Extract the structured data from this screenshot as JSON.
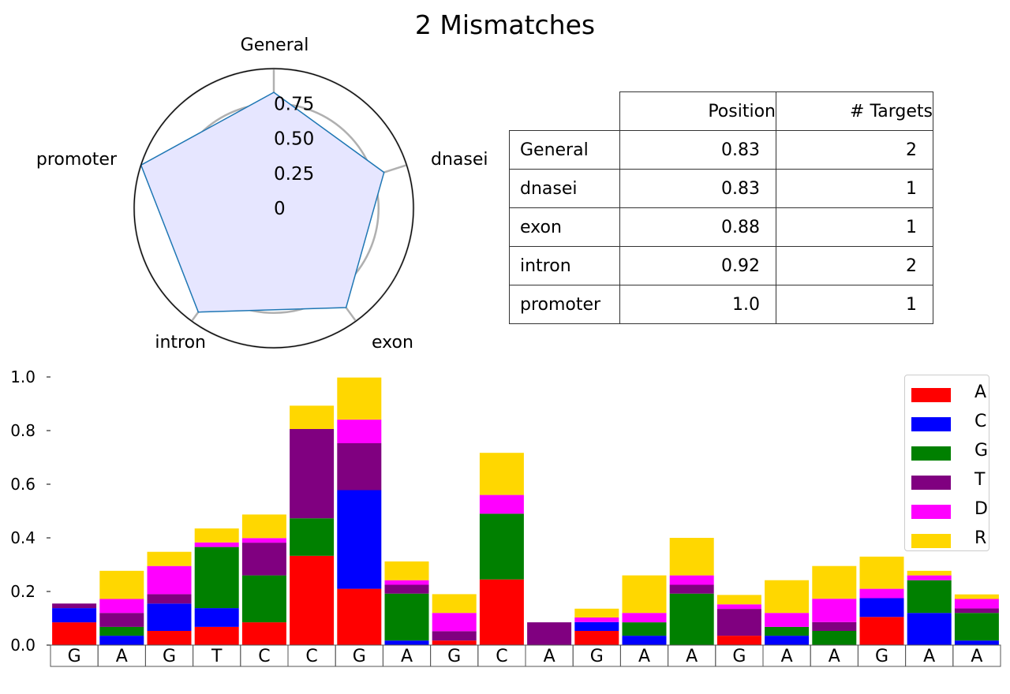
{
  "title": "2 Mismatches",
  "chart_data": [
    {
      "type": "radar",
      "categories": [
        "General",
        "dnasei",
        "exon",
        "intron",
        "promoter"
      ],
      "values": [
        0.83,
        0.83,
        0.88,
        0.92,
        1.0
      ],
      "tick_labels": [
        "0",
        "0.25",
        "0.50",
        "0.75"
      ],
      "rlim": [
        0,
        1.0
      ],
      "fill_color": "#e6e6ff",
      "line_color": "#1f77b4"
    },
    {
      "type": "table",
      "columns": [
        "",
        "Position",
        "# Targets"
      ],
      "rows": [
        [
          "General",
          "0.83",
          "2"
        ],
        [
          "dnasei",
          "0.83",
          "1"
        ],
        [
          "exon",
          "0.88",
          "1"
        ],
        [
          "intron",
          "0.92",
          "2"
        ],
        [
          "promoter",
          "1.0",
          "1"
        ]
      ]
    },
    {
      "type": "bar",
      "stacked": true,
      "categories": [
        "G",
        "A",
        "G",
        "T",
        "C",
        "C",
        "G",
        "A",
        "G",
        "C",
        "A",
        "G",
        "A",
        "A",
        "G",
        "A",
        "A",
        "G",
        "A",
        "A"
      ],
      "ylim": [
        0,
        1.0
      ],
      "yticks": [
        "0.0",
        "0.2",
        "0.4",
        "0.6",
        "0.8",
        "1.0"
      ],
      "legend_position": "top-right",
      "series": [
        {
          "name": "A",
          "color": "#ff0000",
          "values": [
            0.085,
            0,
            0.053,
            0.068,
            0.085,
            0.333,
            0.21,
            0,
            0.017,
            0.245,
            0,
            0.053,
            0,
            0,
            0.035,
            0,
            0,
            0.105,
            0,
            0
          ]
        },
        {
          "name": "C",
          "color": "#0000ff",
          "values": [
            0.053,
            0.035,
            0.102,
            0.07,
            0,
            0,
            0.368,
            0.017,
            0,
            0,
            0,
            0.033,
            0.035,
            0,
            0,
            0.035,
            0,
            0.07,
            0.12,
            0.017
          ]
        },
        {
          "name": "G",
          "color": "#008000",
          "values": [
            0,
            0.033,
            0,
            0.228,
            0.175,
            0.14,
            0,
            0.175,
            0,
            0.245,
            0,
            0,
            0.05,
            0.192,
            0,
            0.033,
            0.053,
            0,
            0.122,
            0.103
          ]
        },
        {
          "name": "T",
          "color": "#800080",
          "values": [
            0.017,
            0.052,
            0.035,
            0,
            0.122,
            0.333,
            0.175,
            0.033,
            0.035,
            0,
            0.085,
            0,
            0,
            0.033,
            0.1,
            0,
            0.033,
            0,
            0,
            0.017
          ]
        },
        {
          "name": "D",
          "color": "#ff00ff",
          "values": [
            0,
            0.052,
            0.105,
            0.017,
            0.017,
            0,
            0.088,
            0.017,
            0.068,
            0.07,
            0,
            0.017,
            0.035,
            0.035,
            0.017,
            0.052,
            0.087,
            0.035,
            0.018,
            0.035
          ]
        },
        {
          "name": "R",
          "color": "#ffd700",
          "values": [
            0,
            0.105,
            0.053,
            0.052,
            0.088,
            0.087,
            0.157,
            0.07,
            0.07,
            0.157,
            0,
            0.033,
            0.14,
            0.14,
            0.035,
            0.122,
            0.122,
            0.12,
            0.017,
            0.017
          ]
        }
      ]
    }
  ]
}
